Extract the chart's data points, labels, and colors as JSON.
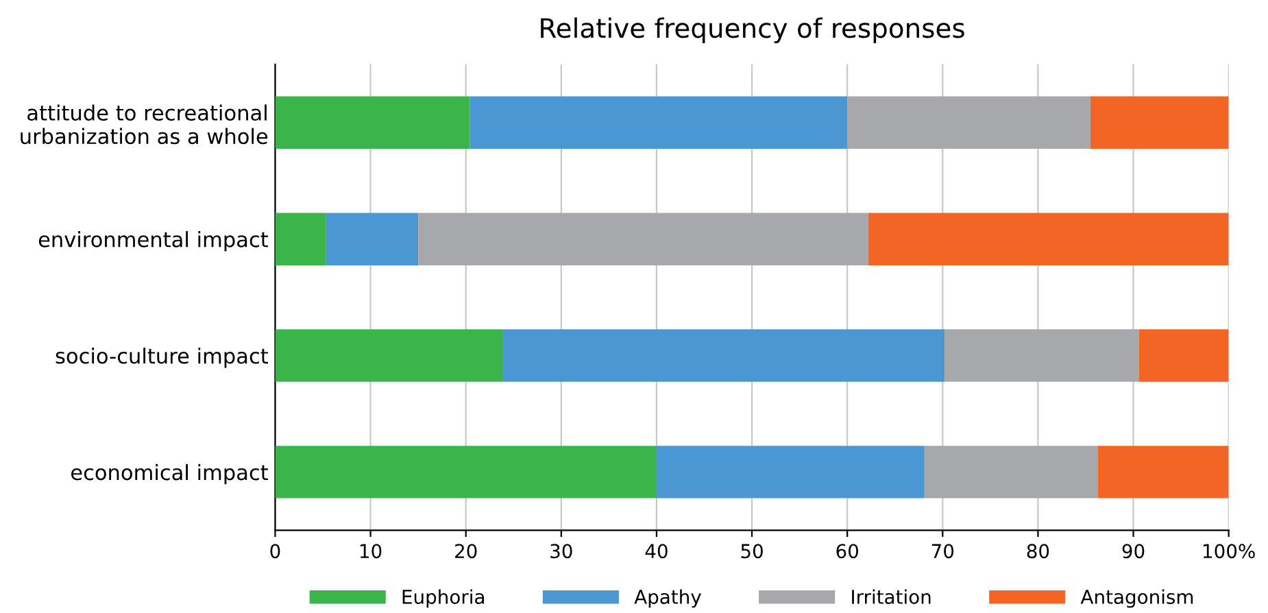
{
  "chart_data": {
    "type": "bar",
    "orientation": "horizontal",
    "stacked": true,
    "title": "Relative frequency of responses",
    "categories": [
      "attitude to recreational\nurbanization as a whole",
      "environmental impact",
      "socio-culture impact",
      "economical impact"
    ],
    "series": [
      {
        "name": "Euphoria",
        "color": "#3bb54a",
        "values": [
          20.4,
          5.3,
          23.9,
          40.0
        ]
      },
      {
        "name": "Apathy",
        "color": "#4a97d3",
        "values": [
          39.6,
          9.7,
          46.3,
          28.1
        ]
      },
      {
        "name": "Irritation",
        "color": "#a7a8ab",
        "values": [
          25.5,
          47.2,
          20.4,
          18.2
        ]
      },
      {
        "name": "Antagonism",
        "color": "#f26524",
        "values": [
          14.5,
          37.8,
          9.4,
          13.7
        ]
      }
    ],
    "xlim": [
      0,
      100
    ],
    "xticks": [
      0,
      10,
      20,
      30,
      40,
      50,
      60,
      70,
      80,
      90,
      {
        "value": 100,
        "label": "100%"
      }
    ],
    "grid": "x",
    "legend": "bottom"
  }
}
